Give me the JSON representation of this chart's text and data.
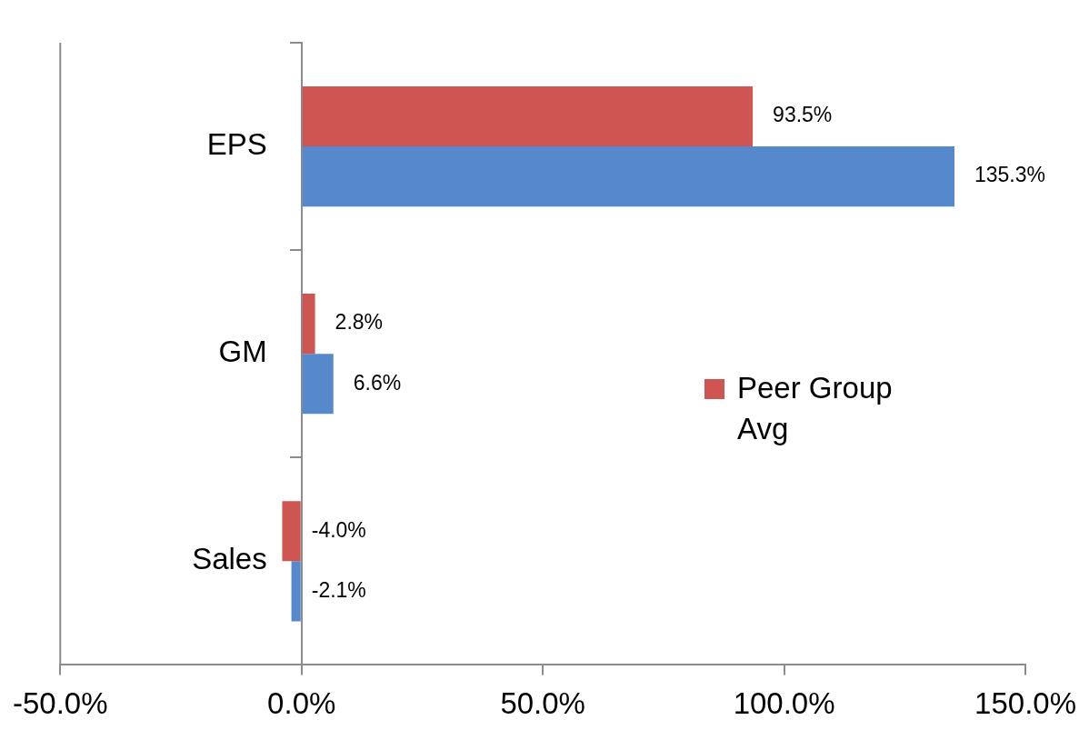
{
  "chart_data": {
    "type": "bar",
    "orientation": "horizontal",
    "categories": [
      "EPS",
      "GM",
      "Sales"
    ],
    "series": [
      {
        "name": "Peer Group Avg",
        "color": "#cf5552",
        "values": [
          93.5,
          2.8,
          -4.0
        ],
        "value_labels": [
          "93.5%",
          "2.8%",
          "-4.0%"
        ]
      },
      {
        "color": "#5589cc",
        "values": [
          135.3,
          6.6,
          -2.1
        ],
        "value_labels": [
          "135.3%",
          "6.6%",
          "-2.1%"
        ]
      }
    ],
    "xlim": [
      -50,
      150
    ],
    "xticks": [
      {
        "value": -50,
        "label": "-50.0%"
      },
      {
        "value": 0,
        "label": "0.0%"
      },
      {
        "value": 50,
        "label": "50.0%"
      },
      {
        "value": 100,
        "label": "100.0%"
      },
      {
        "value": 150,
        "label": "150.0%"
      }
    ],
    "grid": false,
    "legend": "right"
  }
}
